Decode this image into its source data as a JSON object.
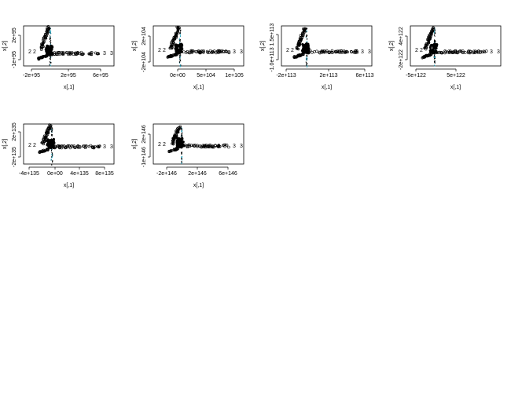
{
  "charts": [
    {
      "x_ticks": [
        "-2e+95",
        "2e+95",
        "6e+95"
      ],
      "y_ticks": [
        "-1e+95",
        "2e+95"
      ],
      "xlabel": "x[,1]",
      "ylabel": "x[,2]",
      "tail_labels": [
        "2",
        "2",
        "3",
        "3"
      ]
    },
    {
      "x_ticks": [
        "0e+00",
        "5e+104",
        "1e+105"
      ],
      "y_ticks": [
        "-2e+104",
        "2e+104"
      ],
      "xlabel": "x[,1]",
      "ylabel": "x[,2]",
      "tail_labels": [
        "2",
        "2",
        "3",
        "3"
      ]
    },
    {
      "x_ticks": [
        "-2e+113",
        "2e+113",
        "6e+113"
      ],
      "y_ticks": [
        "-1.0e+113",
        "1.5e+113"
      ],
      "xlabel": "x[,1]",
      "ylabel": "x[,2]",
      "tail_labels": [
        "2",
        "2",
        "3",
        "3"
      ]
    },
    {
      "x_ticks": [
        "-5e+122",
        "5e+122"
      ],
      "y_ticks": [
        "-2e+122",
        "4e+122"
      ],
      "xlabel": "x[,1]",
      "ylabel": "x[,2]",
      "tail_labels": [
        "2",
        "2",
        "3",
        "3"
      ]
    },
    {
      "x_ticks": [
        "-4e+135",
        "0e+00",
        "4e+135",
        "8e+135"
      ],
      "y_ticks": [
        "-2e+135",
        "2e+135"
      ],
      "xlabel": "x[,1]",
      "ylabel": "x[,2]",
      "tail_labels": [
        "2",
        "2",
        "3",
        "3"
      ]
    },
    {
      "x_ticks": [
        "-2e+146",
        "2e+146",
        "6e+146"
      ],
      "y_ticks": [
        "-1e+146",
        "2e+146"
      ],
      "xlabel": "x[,1]",
      "ylabel": "x[,2]",
      "tail_labels": [
        "2",
        "2",
        "3",
        "3"
      ]
    }
  ],
  "chart_data": [
    {
      "type": "scatter",
      "xlabel": "x[,1]",
      "ylabel": "x[,2]",
      "x_ticks": [
        "-2e+95",
        "2e+95",
        "6e+95"
      ],
      "y_ticks": [
        "-1e+95",
        "2e+95"
      ],
      "point_labels": [
        "0",
        "1",
        "2",
        "3"
      ]
    },
    {
      "type": "scatter",
      "xlabel": "x[,1]",
      "ylabel": "x[,2]",
      "x_ticks": [
        "0e+00",
        "5e+104",
        "1e+105"
      ],
      "y_ticks": [
        "-2e+104",
        "2e+104"
      ],
      "point_labels": [
        "0",
        "1",
        "2",
        "3"
      ]
    },
    {
      "type": "scatter",
      "xlabel": "x[,1]",
      "ylabel": "x[,2]",
      "x_ticks": [
        "-2e+113",
        "2e+113",
        "6e+113"
      ],
      "y_ticks": [
        "-1.0e+113",
        "1.5e+113"
      ],
      "point_labels": [
        "0",
        "1",
        "2",
        "3"
      ]
    },
    {
      "type": "scatter",
      "xlabel": "x[,1]",
      "ylabel": "x[,2]",
      "x_ticks": [
        "-5e+122",
        "5e+122"
      ],
      "y_ticks": [
        "-2e+122",
        "4e+122"
      ],
      "point_labels": [
        "0",
        "1",
        "2",
        "3"
      ]
    },
    {
      "type": "scatter",
      "xlabel": "x[,1]",
      "ylabel": "x[,2]",
      "x_ticks": [
        "-4e+135",
        "0e+00",
        "4e+135",
        "8e+135"
      ],
      "y_ticks": [
        "-2e+135",
        "2e+135"
      ],
      "point_labels": [
        "0",
        "1",
        "2",
        "3"
      ]
    },
    {
      "type": "scatter",
      "xlabel": "x[,1]",
      "ylabel": "x[,2]",
      "x_ticks": [
        "-2e+146",
        "2e+146",
        "6e+146"
      ],
      "y_ticks": [
        "-1e+146",
        "2e+146"
      ],
      "point_labels": [
        "0",
        "1",
        "2",
        "3"
      ]
    }
  ]
}
